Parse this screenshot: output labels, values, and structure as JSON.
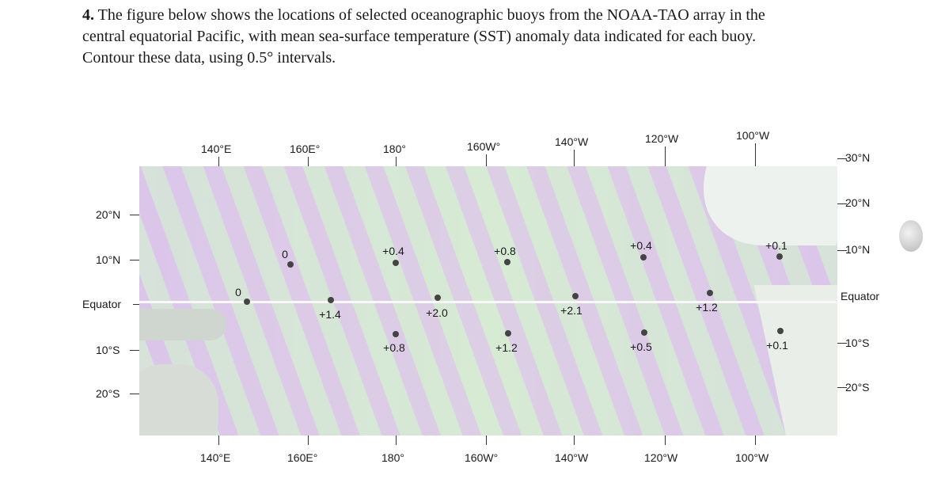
{
  "question": {
    "number": "4.",
    "line1": "The figure below shows the locations of selected oceanographic buoys from the NOAA-TAO array in the",
    "line2": "central equatorial Pacific, with mean sea-surface temperature (SST) anomaly data indicated for each buoy.",
    "line3": "Contour these data, using 0.5° intervals."
  },
  "map": {
    "top_lon_labels": [
      "140°E",
      "160E°",
      "180°",
      "160W°",
      "140°W",
      "120°W",
      "100°W"
    ],
    "bottom_lon_labels": [
      "140°E",
      "160E°",
      "180°",
      "160W°",
      "140°W",
      "120°W",
      "100°W"
    ],
    "left_lat_labels": [
      "20°N",
      "10°N",
      "Equator",
      "10°S",
      "20°S"
    ],
    "right_lat_labels": [
      "30°N",
      "20°N",
      "10°N",
      "Equator",
      "10°S",
      "20°S"
    ],
    "buoys": [
      {
        "lon": "156E",
        "lat": "8N",
        "value": "0"
      },
      {
        "lon": "147E",
        "lat": "0",
        "value": "0"
      },
      {
        "lon": "165E",
        "lat": "2S",
        "value": "+1.4"
      },
      {
        "lon": "180",
        "lat": "8N",
        "value": "+0.4"
      },
      {
        "lon": "170W",
        "lat": "2N",
        "value": "+2.0"
      },
      {
        "lon": "180",
        "lat": "8S",
        "value": "+0.8"
      },
      {
        "lon": "155W",
        "lat": "8N",
        "value": "+0.8"
      },
      {
        "lon": "155W",
        "lat": "8S",
        "value": "+1.2"
      },
      {
        "lon": "140W",
        "lat": "2N",
        "value": "+2.1"
      },
      {
        "lon": "125W",
        "lat": "8N",
        "value": "+0.4"
      },
      {
        "lon": "125W",
        "lat": "8S",
        "value": "+0.5"
      },
      {
        "lon": "110W",
        "lat": "2N",
        "value": "+1.2"
      },
      {
        "lon": "95W",
        "lat": "8N",
        "value": "+0.1"
      },
      {
        "lon": "95W",
        "lat": "8S",
        "value": "+0.1"
      }
    ]
  }
}
